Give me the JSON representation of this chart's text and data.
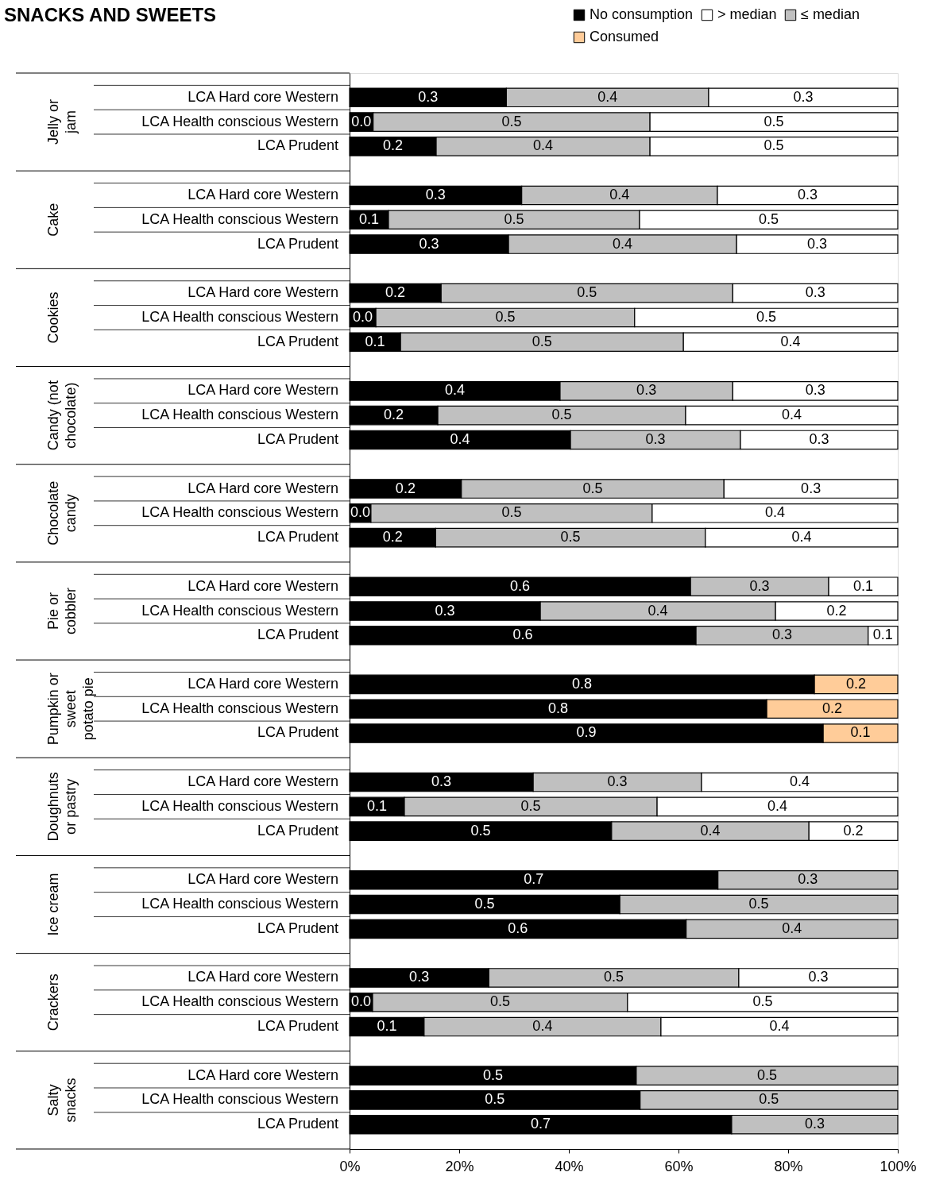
{
  "chart_data": {
    "type": "bar",
    "orientation": "horizontal",
    "stacked": true,
    "title": "SNACKS AND SWEETS",
    "categories": [
      "LCA Hard core Western",
      "LCA Health conscious Western",
      "LCA Prudent",
      "LCA Hard core Western",
      "LCA Health conscious Western",
      "LCA Prudent",
      "LCA Hard core Western",
      "LCA Health conscious Western",
      "LCA Prudent",
      "LCA Hard core Western",
      "LCA Health conscious Western",
      "LCA Prudent",
      "LCA Hard core Western",
      "LCA Health conscious Western",
      "LCA Prudent",
      "LCA Hard core Western",
      "LCA Health conscious Western",
      "LCA Prudent",
      "LCA Hard core Western",
      "LCA Health conscious Western",
      "LCA Prudent",
      "LCA Hard core Western",
      "LCA Health conscious Western",
      "LCA Prudent",
      "LCA Hard core Western",
      "LCA Health conscious Western",
      "LCA Prudent",
      "LCA Hard core Western",
      "LCA Health conscious Western",
      "LCA Prudent",
      "LCA Hard core Western",
      "LCA Health conscious Western",
      "LCA Prudent"
    ],
    "annotations": [
      "Jelly or\njam",
      "Cake",
      "Cookies",
      "Candy (not\nchocolate)",
      "Chocolate\ncandy",
      "Pie or\ncobbler",
      "Pumpkin or\nsweet\npotato pie",
      "Doughnuts\nor pastry",
      "Ice cream",
      "Crackers",
      "Salty\nsnacks"
    ],
    "series": [
      {
        "name": "No consumption",
        "color": "#000000",
        "values": [
          0.286,
          0.043,
          0.158,
          0.314,
          0.071,
          0.29,
          0.167,
          0.048,
          0.093,
          0.384,
          0.161,
          0.403,
          0.204,
          0.039,
          0.157,
          0.622,
          0.348,
          0.632,
          0.848,
          0.761,
          0.864,
          0.335,
          0.1,
          0.478,
          0.672,
          0.493,
          0.614,
          0.254,
          0.042,
          0.136,
          0.523,
          0.53,
          0.697
        ],
        "value_labels": [
          "0.3",
          "0.0",
          "0.2",
          "0.3",
          "0.1",
          "0.3",
          "0.2",
          "0.0",
          "0.1",
          "0.4",
          "0.2",
          "0.4",
          "0.2",
          "0.0",
          "0.2",
          "0.6",
          "0.3",
          "0.6",
          "0.8",
          "0.8",
          "0.9",
          "0.3",
          "0.1",
          "0.5",
          "0.7",
          "0.5",
          "0.6",
          "0.3",
          "0.0",
          "0.1",
          "0.5",
          "0.5",
          "0.7"
        ]
      },
      {
        "name": "≤ median",
        "color": "#c0c0c0",
        "values": [
          0.369,
          0.505,
          0.39,
          0.357,
          0.458,
          0.416,
          0.532,
          0.472,
          0.516,
          0.315,
          0.452,
          0.31,
          0.479,
          0.513,
          0.492,
          0.252,
          0.429,
          0.314,
          null,
          null,
          null,
          0.307,
          0.461,
          0.36,
          0.328,
          0.507,
          0.386,
          0.456,
          0.465,
          0.432,
          0.477,
          0.47,
          0.303
        ],
        "value_labels": [
          "0.4",
          "0.5",
          "0.4",
          "0.4",
          "0.5",
          "0.4",
          "0.5",
          "0.5",
          "0.5",
          "0.3",
          "0.5",
          "0.3",
          "0.5",
          "0.5",
          "0.5",
          "0.3",
          "0.4",
          "0.3",
          null,
          null,
          null,
          "0.3",
          "0.5",
          "0.4",
          "0.3",
          "0.5",
          "0.4",
          "0.5",
          "0.5",
          "0.4",
          "0.5",
          "0.5",
          "0.3"
        ]
      },
      {
        "name": "> median",
        "color": "#ffffff",
        "values": [
          0.345,
          0.452,
          0.452,
          0.329,
          0.471,
          0.294,
          0.301,
          0.48,
          0.391,
          0.301,
          0.387,
          0.287,
          0.317,
          0.448,
          0.351,
          0.126,
          0.223,
          0.054,
          null,
          null,
          null,
          0.358,
          0.439,
          0.162,
          null,
          null,
          null,
          0.29,
          0.493,
          0.432,
          null,
          null,
          null
        ],
        "value_labels": [
          "0.3",
          "0.5",
          "0.5",
          "0.3",
          "0.5",
          "0.3",
          "0.3",
          "0.5",
          "0.4",
          "0.3",
          "0.4",
          "0.3",
          "0.3",
          "0.4",
          "0.4",
          "0.1",
          "0.2",
          "0.1",
          null,
          null,
          null,
          "0.4",
          "0.4",
          "0.2",
          null,
          null,
          null,
          "0.3",
          "0.5",
          "0.4",
          null,
          null,
          null
        ]
      },
      {
        "name": "Consumed",
        "color": "#ffcc99",
        "values": [
          null,
          null,
          null,
          null,
          null,
          null,
          null,
          null,
          null,
          null,
          null,
          null,
          null,
          null,
          null,
          null,
          null,
          null,
          0.152,
          0.239,
          0.136,
          null,
          null,
          null,
          null,
          null,
          null,
          null,
          null,
          null,
          null,
          null,
          null
        ],
        "value_labels": [
          null,
          null,
          null,
          null,
          null,
          null,
          null,
          null,
          null,
          null,
          null,
          null,
          null,
          null,
          null,
          null,
          null,
          null,
          "0.2",
          "0.2",
          "0.1",
          null,
          null,
          null,
          null,
          null,
          null,
          null,
          null,
          null,
          null,
          null,
          null
        ]
      }
    ],
    "xlim": [
      0,
      1
    ],
    "xticks": [
      {
        "value": 0,
        "label": "0%"
      },
      {
        "value": 0.2,
        "label": "20%"
      },
      {
        "value": 0.4,
        "label": "40%"
      },
      {
        "value": 0.6,
        "label": "60%"
      },
      {
        "value": 0.8,
        "label": "80%"
      },
      {
        "value": 1,
        "label": "100%"
      }
    ],
    "legend": "top right",
    "grid": false
  }
}
